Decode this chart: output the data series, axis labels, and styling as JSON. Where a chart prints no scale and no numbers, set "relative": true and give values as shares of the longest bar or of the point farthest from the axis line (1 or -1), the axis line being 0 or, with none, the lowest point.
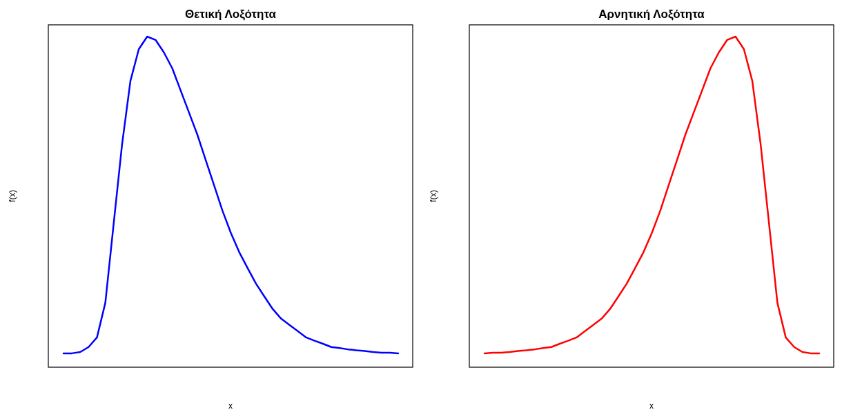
{
  "chart_data": [
    {
      "type": "line",
      "title": "Θετική Λοξότητα",
      "xlabel": "x",
      "ylabel": "f(x)",
      "relative": true,
      "categories": [
        null,
        null,
        null,
        null,
        null,
        null,
        null,
        null,
        null,
        null,
        null,
        null,
        null,
        null,
        null,
        null,
        null,
        null,
        null,
        null,
        null,
        null,
        null,
        null,
        null,
        null,
        null,
        null,
        null,
        null,
        null,
        null,
        null,
        null,
        null,
        null,
        null,
        null,
        null,
        null,
        null
      ],
      "series": [
        {
          "color": "#0000ff",
          "values": [
            0.042,
            0.042,
            0.046,
            0.061,
            0.09,
            0.195,
            0.435,
            0.674,
            0.866,
            0.962,
            1,
            0.99,
            0.952,
            0.904,
            0.837,
            0.77,
            0.703,
            0.626,
            0.55,
            0.473,
            0.406,
            0.348,
            0.3,
            0.253,
            0.214,
            0.176,
            0.147,
            0.128,
            0.109,
            0.09,
            0.08,
            0.071,
            0.061,
            0.058,
            0.054,
            0.051,
            0.049,
            0.046,
            0.044,
            0.044,
            0.042
          ]
        }
      ],
      "marker": "none",
      "line_style": "solid"
    },
    {
      "type": "line",
      "title": "Αρνητική Λοξότητα",
      "xlabel": "x",
      "ylabel": "f(x)",
      "relative": true,
      "categories": [
        null,
        null,
        null,
        null,
        null,
        null,
        null,
        null,
        null,
        null,
        null,
        null,
        null,
        null,
        null,
        null,
        null,
        null,
        null,
        null,
        null,
        null,
        null,
        null,
        null,
        null,
        null,
        null,
        null,
        null,
        null,
        null,
        null,
        null,
        null,
        null,
        null,
        null,
        null,
        null,
        null
      ],
      "series": [
        {
          "color": "#ff0000",
          "values": [
            0.042,
            0.044,
            0.044,
            0.046,
            0.049,
            0.051,
            0.054,
            0.058,
            0.061,
            0.071,
            0.08,
            0.09,
            0.109,
            0.128,
            0.147,
            0.176,
            0.214,
            0.253,
            0.3,
            0.348,
            0.406,
            0.473,
            0.55,
            0.626,
            0.703,
            0.77,
            0.837,
            0.904,
            0.952,
            0.99,
            1,
            0.962,
            0.866,
            0.674,
            0.435,
            0.195,
            0.09,
            0.061,
            0.046,
            0.042,
            0.042
          ]
        }
      ],
      "marker": "none",
      "line_style": "solid"
    }
  ]
}
